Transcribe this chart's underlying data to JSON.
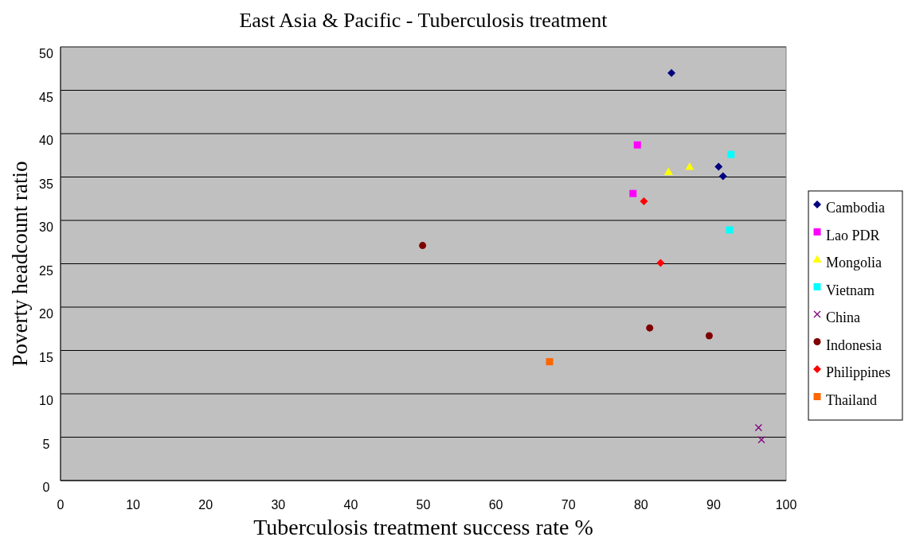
{
  "chart_data": {
    "type": "scatter",
    "title": "East Asia & Pacific - Tuberculosis treatment",
    "xlabel": "Tuberculosis treatment success rate %",
    "ylabel": "Poverty headcount ratio",
    "xlim": [
      0,
      100
    ],
    "xticks": [
      0,
      10,
      20,
      30,
      40,
      50,
      60,
      70,
      80,
      90,
      100
    ],
    "ylim": [
      0,
      50
    ],
    "yticks": [
      0,
      5,
      10,
      15,
      20,
      25,
      30,
      35,
      40,
      45,
      50
    ],
    "grid": "y",
    "legend": "right",
    "series": [
      {
        "name": "Cambodia",
        "color": "#000080",
        "marker": "diamond",
        "x": [
          84.2,
          90.7,
          91.3
        ],
        "values": [
          47.0,
          36.2,
          35.1
        ]
      },
      {
        "name": "Lao PDR",
        "color": "#ff00ff",
        "marker": "square",
        "x": [
          79.5,
          78.9
        ],
        "values": [
          38.7,
          33.1
        ]
      },
      {
        "name": "Mongolia",
        "color": "#ffff00",
        "marker": "triangle",
        "x": [
          83.8,
          86.7
        ],
        "values": [
          35.6,
          36.2
        ]
      },
      {
        "name": "Vietnam",
        "color": "#00ffff",
        "marker": "square",
        "x": [
          92.4,
          92.2
        ],
        "values": [
          37.6,
          28.9
        ]
      },
      {
        "name": "China",
        "color": "#800080",
        "marker": "cross",
        "x": [
          96.2,
          96.6
        ],
        "values": [
          6.1,
          4.7
        ]
      },
      {
        "name": "Indonesia",
        "color": "#800000",
        "marker": "circle",
        "x": [
          49.9,
          81.2,
          89.4
        ],
        "values": [
          27.1,
          17.6,
          16.7
        ]
      },
      {
        "name": "Philippines",
        "color": "#ff0000",
        "marker": "diamond",
        "x": [
          80.4,
          82.7
        ],
        "values": [
          32.2,
          25.1
        ]
      },
      {
        "name": "Thailand",
        "color": "#ff6600",
        "marker": "square",
        "x": [
          67.4
        ],
        "values": [
          13.7
        ]
      }
    ]
  }
}
